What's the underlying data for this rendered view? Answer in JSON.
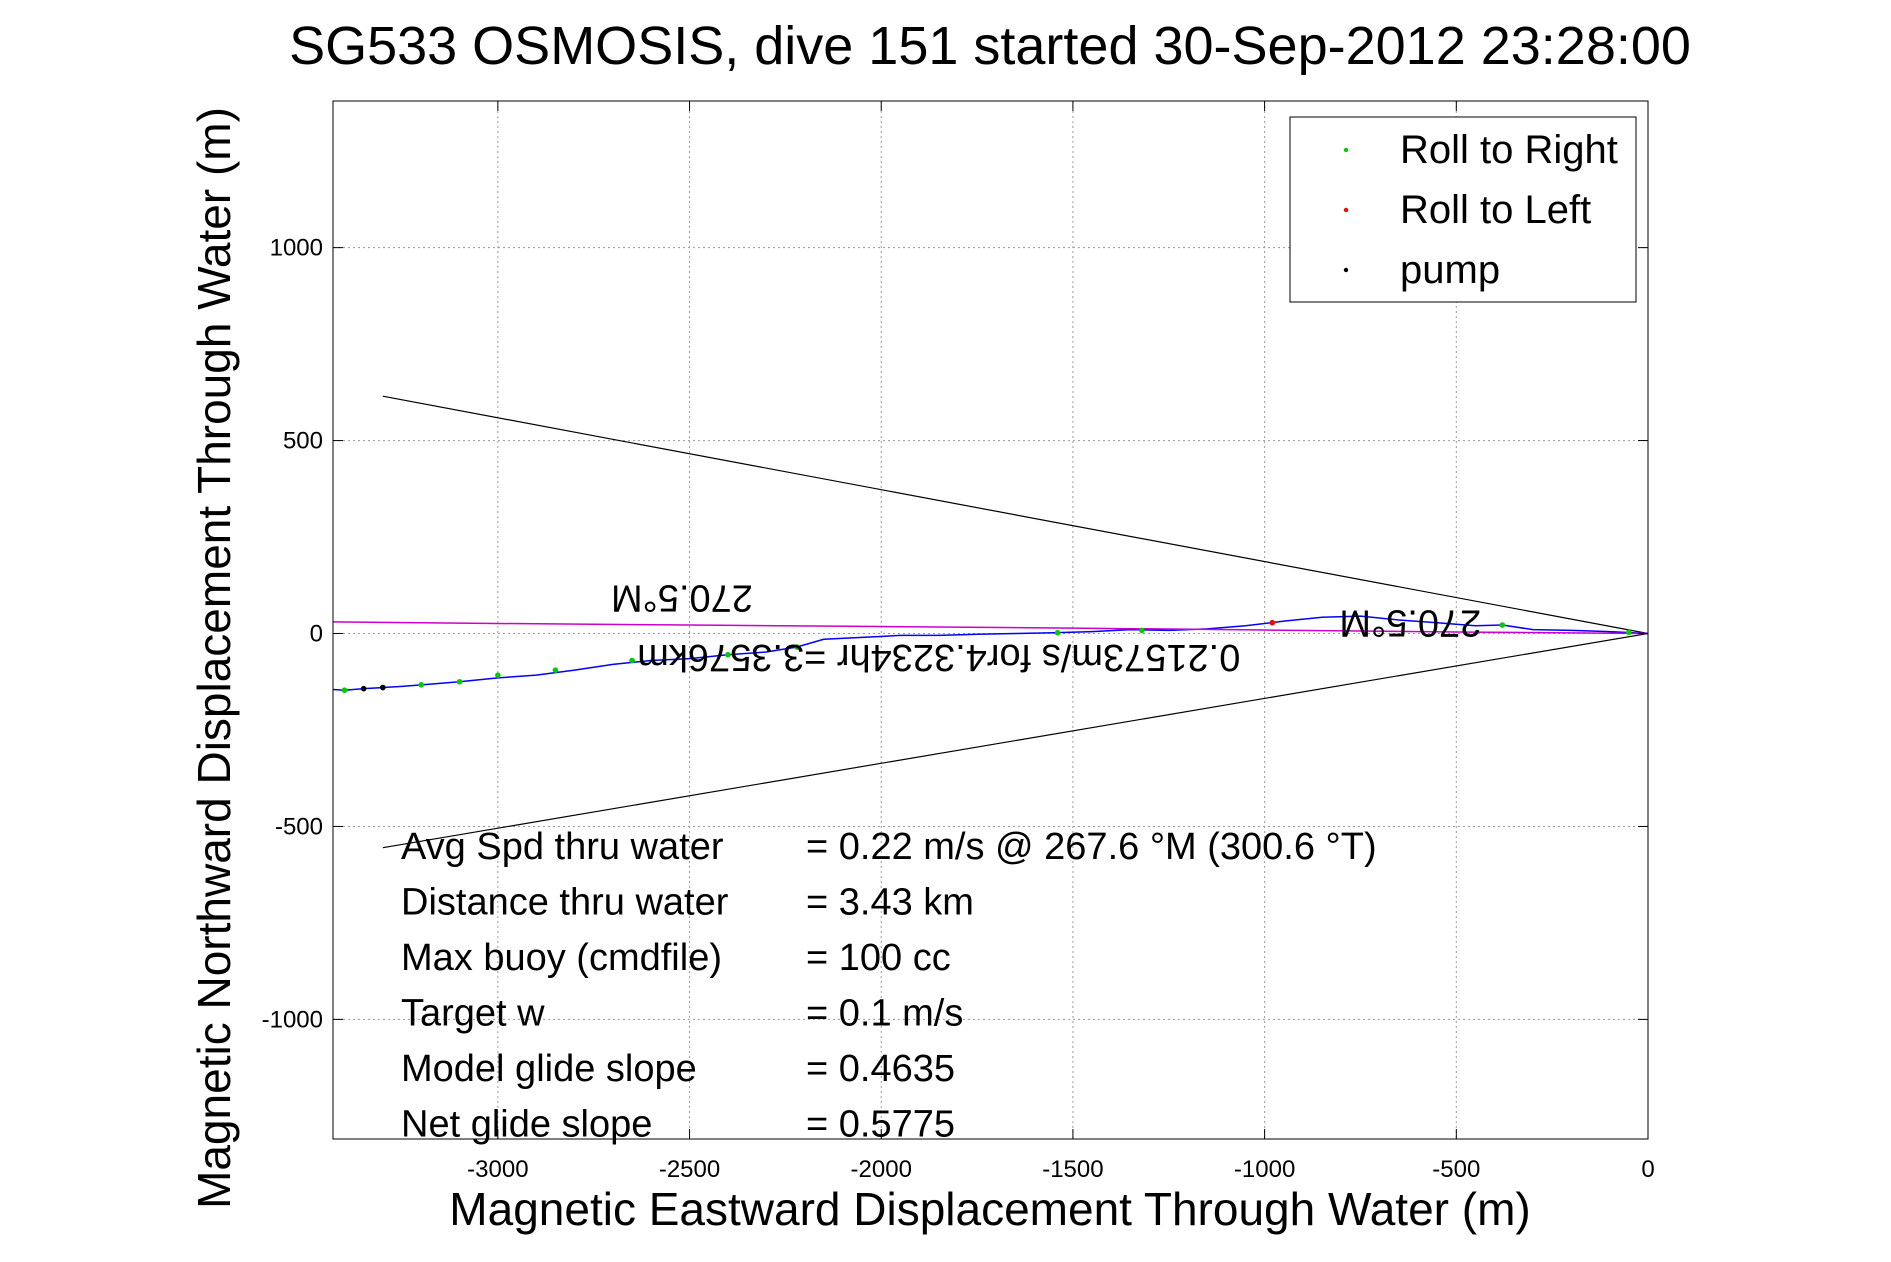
{
  "chart_data": {
    "type": "scatter",
    "title": "SG533 OSMOSIS, dive 151 started 30-Sep-2012 23:28:00",
    "xlabel": "Magnetic Eastward Displacement Through Water (m)",
    "ylabel": "Magnetic Northward Displacement Through Water (m)",
    "xlim": [
      -3430,
      0
    ],
    "ylim": [
      -1310,
      1380
    ],
    "xticks": [
      -3000,
      -2500,
      -2000,
      -1500,
      -1000,
      -500,
      0
    ],
    "yticks": [
      -1000,
      -500,
      0,
      500,
      1000
    ],
    "grid": true,
    "legend_position": "top-right",
    "legend": [
      {
        "label": "Roll to Right",
        "color": "#00cc00"
      },
      {
        "label": "Roll to Left",
        "color": "#ff0000"
      },
      {
        "label": "pump",
        "color": "#000000"
      }
    ],
    "series": [
      {
        "name": "track",
        "color": "#0000ff",
        "x": [
          0,
          -100,
          -200,
          -300,
          -380,
          -450,
          -550,
          -650,
          -750,
          -850,
          -950,
          -1050,
          -1150,
          -1250,
          -1350,
          -1450,
          -1550,
          -1650,
          -1750,
          -1850,
          -1950,
          -2050,
          -2150,
          -2220,
          -2300,
          -2400,
          -2500,
          -2600,
          -2700,
          -2800,
          -2900,
          -3000,
          -3100,
          -3200,
          -3250,
          -3300,
          -3350,
          -3400,
          -3430
        ],
        "y": [
          0,
          5,
          8,
          10,
          22,
          20,
          28,
          35,
          45,
          42,
          32,
          20,
          12,
          8,
          10,
          5,
          2,
          0,
          -2,
          -5,
          -5,
          -10,
          -15,
          -35,
          -48,
          -55,
          -65,
          -70,
          -80,
          -95,
          -108,
          -115,
          -125,
          -133,
          -137,
          -140,
          -143,
          -147,
          -145
        ]
      },
      {
        "name": "heading line",
        "color": "#cc00cc",
        "x": [
          0,
          -500,
          -1000,
          -1500,
          -2000,
          -2500,
          -3000,
          -3430
        ],
        "y": [
          0,
          4,
          9,
          14,
          18,
          22,
          26,
          30
        ]
      }
    ],
    "markers": {
      "roll_right_x": [
        -50,
        -380,
        -980,
        -1320,
        -1540,
        -2220,
        -2400,
        -2650,
        -2850,
        -3000,
        -3100,
        -3200,
        -3300,
        -3400
      ],
      "roll_right_y": [
        3,
        22,
        28,
        8,
        2,
        -35,
        -55,
        -70,
        -95,
        -108,
        -125,
        -133,
        -140,
        -147
      ],
      "roll_left_x": [
        -980
      ],
      "roll_left_y": [
        28
      ],
      "pump_x": [
        -3350,
        -3300
      ],
      "pump_y": [
        -143,
        -140
      ]
    },
    "cone_lines": [
      {
        "x": [
          0,
          -3300
        ],
        "y": [
          0,
          615
        ]
      },
      {
        "x": [
          0,
          -3300
        ],
        "y": [
          0,
          -555
        ]
      }
    ],
    "annotations": [
      {
        "text": "270.5°M",
        "x": -2520,
        "y": 125,
        "upside_down": true
      },
      {
        "text": "270.5°M",
        "x": -620,
        "y": 60,
        "upside_down": true
      },
      {
        "text": "0.21573m/s for4.3234hr =3.3576km",
        "x": -1850,
        "y": -30,
        "upside_down": true
      }
    ],
    "stats": [
      {
        "label": "Avg Spd thru water",
        "value": "=  0.22 m/s @ 267.6 °M (300.6 °T)"
      },
      {
        "label": "Distance thru water",
        "value": "=  3.43 km"
      },
      {
        "label": "Max buoy (cmdfile)",
        "value": "= 100 cc"
      },
      {
        "label": "Target w",
        "value": "= 0.1 m/s"
      },
      {
        "label": "Model glide slope",
        "value": "= 0.4635"
      },
      {
        "label": "Net glide slope",
        "value": "= 0.5775"
      }
    ]
  }
}
